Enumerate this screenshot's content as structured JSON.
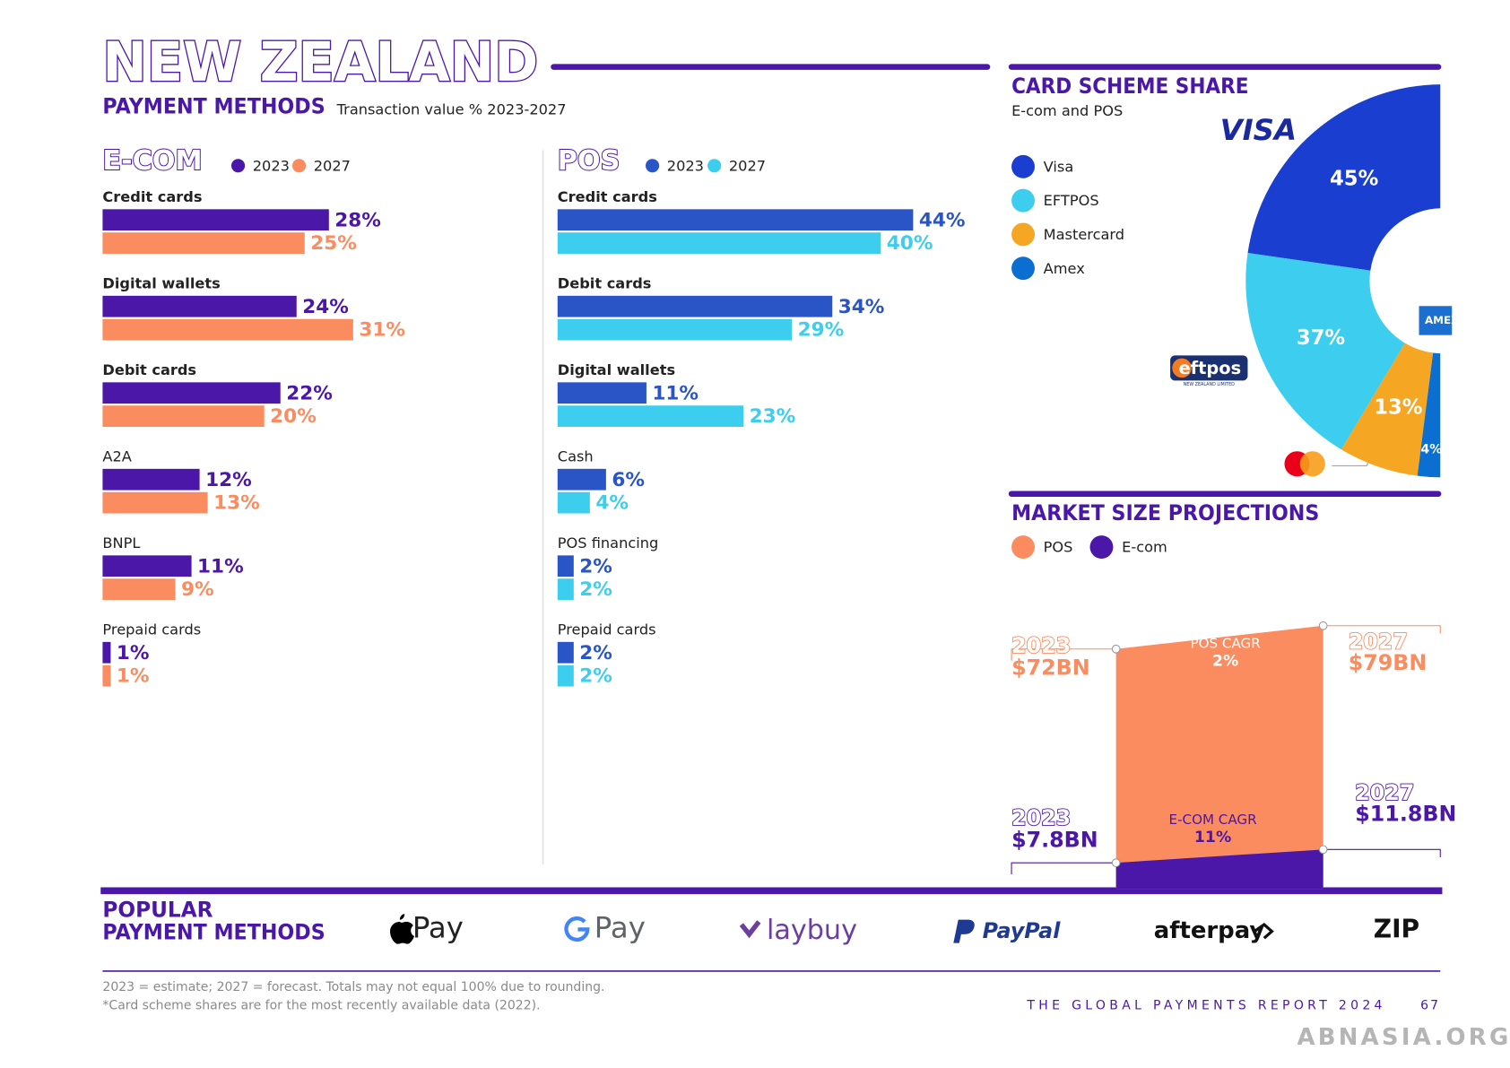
{
  "header": {
    "title": "NEW ZEALAND",
    "subtitle": "PAYMENT METHODS",
    "note": "Transaction value % 2023-2027"
  },
  "chart_data": [
    {
      "type": "hbar",
      "title": "E-COM",
      "categories": [
        "Credit cards",
        "Digital wallets",
        "Debit cards",
        "A2A",
        "BNPL",
        "Prepaid cards"
      ],
      "series": [
        {
          "name": "2023",
          "color": "#4b17a8",
          "values": [
            28,
            24,
            22,
            12,
            11,
            1
          ],
          "value_labels": [
            "28%",
            "24%",
            "22%",
            "12%",
            "11%",
            "1%"
          ]
        },
        {
          "name": "2027",
          "color": "#fb8c5f",
          "values": [
            25,
            31,
            20,
            13,
            9,
            1
          ],
          "value_labels": [
            "25%",
            "31%",
            "20%",
            "13%",
            "9%",
            "1%"
          ]
        }
      ]
    },
    {
      "type": "hbar",
      "title": "POS",
      "categories": [
        "Credit cards",
        "Debit cards",
        "Digital wallets",
        "Cash",
        "POS financing",
        "Prepaid cards"
      ],
      "series": [
        {
          "name": "2023",
          "color": "#2a55c7",
          "values": [
            44,
            34,
            11,
            6,
            2,
            2
          ],
          "value_labels": [
            "44%",
            "34%",
            "11%",
            "6%",
            "2%",
            "2%"
          ]
        },
        {
          "name": "2027",
          "color": "#3dcdee",
          "values": [
            40,
            29,
            23,
            4,
            2,
            2
          ],
          "value_labels": [
            "40%",
            "29%",
            "23%",
            "4%",
            "2%",
            "2%"
          ]
        }
      ]
    },
    {
      "type": "donut",
      "title": "CARD SCHEME SHARE",
      "subtitle": "E-com and POS",
      "categories": [
        "Visa",
        "EFTPOS",
        "Mastercard",
        "Amex"
      ],
      "values": [
        45,
        37,
        13,
        4
      ],
      "value_labels": [
        "45%",
        "37%",
        "13%",
        "4%"
      ],
      "colors": [
        "#1a3fd0",
        "#3dcdee",
        "#f5a623",
        "#0a6fd0"
      ]
    },
    {
      "type": "area",
      "title": "MARKET SIZE PROJECTIONS",
      "x": [
        "2023",
        "2027"
      ],
      "series": [
        {
          "name": "POS",
          "color": "#fb8c5f",
          "values": [
            72,
            79
          ],
          "value_labels": [
            "$72BN",
            "$79BN"
          ],
          "cagr_label": "POS CAGR",
          "cagr": 2,
          "cagr_value_label": "2%"
        },
        {
          "name": "E-com",
          "color": "#4b17a8",
          "values": [
            7.8,
            11.8
          ],
          "value_labels": [
            "$7.8BN",
            "$11.8BN"
          ],
          "cagr_label": "E-COM CAGR",
          "cagr": 11,
          "cagr_value_label": "11%"
        }
      ]
    }
  ],
  "logos": {
    "visa": "VISA",
    "eftpos": "eftpos",
    "eftpos_sub": "NEW ZEALAND LIMITED",
    "amex": "AMEX"
  },
  "popular": {
    "title_lines": [
      "POPULAR",
      "PAYMENT METHODS"
    ],
    "logos": [
      "Pay",
      "Pay",
      "laybuy",
      "PayPal",
      "afterpay",
      "ZIP"
    ]
  },
  "footer": {
    "notes": [
      "2023 = estimate; 2027 = forecast. Totals may not equal 100% due to rounding.",
      "*Card scheme shares are for the most recently available data (2022)."
    ],
    "report": "THE GLOBAL PAYMENTS REPORT 2024",
    "page": "67"
  },
  "watermark": "ABNASIA.ORG"
}
